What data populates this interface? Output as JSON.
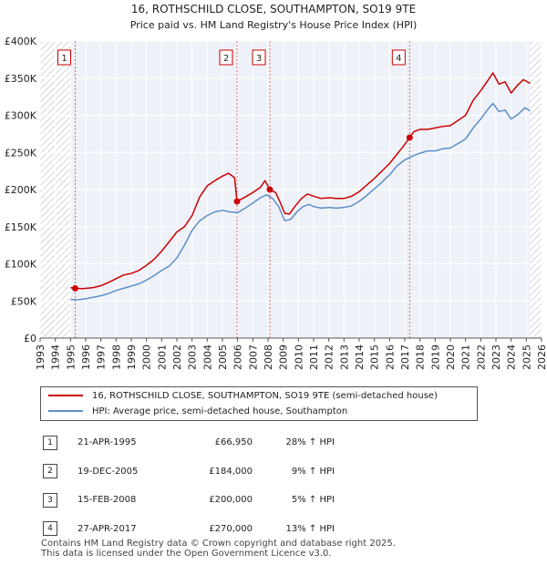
{
  "chart_data": {
    "type": "line",
    "title": "16, ROTHSCHILD CLOSE, SOUTHAMPTON, SO19 9TE",
    "subtitle": "Price paid vs. HM Land Registry's House Price Index (HPI)",
    "xlim": [
      1993,
      2026
    ],
    "ylim": [
      0,
      400000
    ],
    "x_ticks": [
      1993,
      1994,
      1995,
      1996,
      1997,
      1998,
      1999,
      2000,
      2001,
      2002,
      2003,
      2004,
      2005,
      2006,
      2007,
      2008,
      2009,
      2010,
      2011,
      2012,
      2013,
      2014,
      2015,
      2016,
      2017,
      2018,
      2019,
      2020,
      2021,
      2022,
      2023,
      2024,
      2025,
      2026
    ],
    "y_ticks": [
      {
        "value": 0,
        "label": "£0"
      },
      {
        "value": 50000,
        "label": "£50K"
      },
      {
        "value": 100000,
        "label": "£100K"
      },
      {
        "value": 150000,
        "label": "£150K"
      },
      {
        "value": 200000,
        "label": "£200K"
      },
      {
        "value": 250000,
        "label": "£250K"
      },
      {
        "value": 300000,
        "label": "£300K"
      },
      {
        "value": 350000,
        "label": "£350K"
      },
      {
        "value": 400000,
        "label": "£400K"
      }
    ],
    "data_start": 1995.0,
    "data_end": 2025.25,
    "series": [
      {
        "name": "16, ROTHSCHILD CLOSE, SOUTHAMPTON, SO19 9TE (semi-detached house)",
        "color": "#cc0000",
        "points": [
          [
            1995.0,
            68000
          ],
          [
            1995.3,
            66950
          ],
          [
            1995.8,
            66500
          ],
          [
            1996.5,
            68000
          ],
          [
            1997.0,
            70500
          ],
          [
            1997.5,
            75000
          ],
          [
            1998.0,
            80000
          ],
          [
            1998.5,
            85000
          ],
          [
            1999.0,
            87000
          ],
          [
            1999.5,
            91000
          ],
          [
            2000.0,
            98000
          ],
          [
            2000.5,
            106000
          ],
          [
            2001.0,
            117000
          ],
          [
            2001.5,
            130000
          ],
          [
            2002.0,
            143000
          ],
          [
            2002.5,
            150000
          ],
          [
            2003.0,
            165000
          ],
          [
            2003.5,
            190000
          ],
          [
            2004.0,
            205000
          ],
          [
            2004.5,
            212000
          ],
          [
            2005.0,
            218000
          ],
          [
            2005.4,
            222000
          ],
          [
            2005.8,
            216000
          ],
          [
            2005.96,
            184000
          ],
          [
            2006.5,
            190000
          ],
          [
            2007.0,
            196000
          ],
          [
            2007.5,
            203000
          ],
          [
            2007.8,
            212000
          ],
          [
            2008.12,
            200000
          ],
          [
            2008.5,
            196000
          ],
          [
            2008.8,
            183000
          ],
          [
            2009.1,
            168000
          ],
          [
            2009.4,
            167000
          ],
          [
            2009.8,
            178000
          ],
          [
            2010.2,
            188000
          ],
          [
            2010.6,
            194000
          ],
          [
            2011.0,
            191000
          ],
          [
            2011.5,
            188000
          ],
          [
            2012.0,
            189000
          ],
          [
            2012.5,
            188000
          ],
          [
            2013.0,
            188000
          ],
          [
            2013.5,
            191000
          ],
          [
            2014.0,
            197000
          ],
          [
            2014.5,
            206000
          ],
          [
            2015.0,
            215000
          ],
          [
            2015.5,
            225000
          ],
          [
            2016.0,
            235000
          ],
          [
            2016.5,
            248000
          ],
          [
            2016.9,
            258000
          ],
          [
            2017.32,
            270000
          ],
          [
            2017.6,
            278000
          ],
          [
            2018.0,
            281000
          ],
          [
            2018.5,
            281000
          ],
          [
            2019.0,
            283000
          ],
          [
            2019.5,
            285000
          ],
          [
            2020.0,
            286000
          ],
          [
            2020.5,
            293000
          ],
          [
            2021.0,
            300000
          ],
          [
            2021.5,
            320000
          ],
          [
            2022.0,
            333000
          ],
          [
            2022.5,
            348000
          ],
          [
            2022.8,
            357000
          ],
          [
            2023.2,
            342000
          ],
          [
            2023.6,
            345000
          ],
          [
            2024.0,
            330000
          ],
          [
            2024.4,
            340000
          ],
          [
            2024.8,
            348000
          ],
          [
            2025.25,
            343000
          ]
        ]
      },
      {
        "name": "HPI: Average price, semi-detached house, Southampton",
        "color": "#5b8fc9",
        "points": [
          [
            1995.0,
            52000
          ],
          [
            1995.5,
            51500
          ],
          [
            1996.0,
            53000
          ],
          [
            1996.5,
            55000
          ],
          [
            1997.0,
            57000
          ],
          [
            1997.5,
            60000
          ],
          [
            1998.0,
            64000
          ],
          [
            1998.5,
            67000
          ],
          [
            1999.0,
            70000
          ],
          [
            1999.5,
            73000
          ],
          [
            2000.0,
            78000
          ],
          [
            2000.5,
            84000
          ],
          [
            2001.0,
            91000
          ],
          [
            2001.5,
            97000
          ],
          [
            2002.0,
            108000
          ],
          [
            2002.5,
            125000
          ],
          [
            2003.0,
            145000
          ],
          [
            2003.5,
            158000
          ],
          [
            2004.0,
            165000
          ],
          [
            2004.5,
            170000
          ],
          [
            2005.0,
            172000
          ],
          [
            2005.5,
            170000
          ],
          [
            2006.0,
            169000
          ],
          [
            2006.5,
            175000
          ],
          [
            2007.0,
            182000
          ],
          [
            2007.5,
            189000
          ],
          [
            2007.9,
            193000
          ],
          [
            2008.3,
            188000
          ],
          [
            2008.7,
            177000
          ],
          [
            2009.1,
            158000
          ],
          [
            2009.5,
            160000
          ],
          [
            2009.9,
            170000
          ],
          [
            2010.3,
            177000
          ],
          [
            2010.7,
            180000
          ],
          [
            2011.0,
            177000
          ],
          [
            2011.5,
            175000
          ],
          [
            2012.0,
            176000
          ],
          [
            2012.5,
            175000
          ],
          [
            2013.0,
            176000
          ],
          [
            2013.5,
            178000
          ],
          [
            2014.0,
            184000
          ],
          [
            2014.5,
            192000
          ],
          [
            2015.0,
            201000
          ],
          [
            2015.5,
            210000
          ],
          [
            2016.0,
            220000
          ],
          [
            2016.5,
            232000
          ],
          [
            2017.0,
            240000
          ],
          [
            2017.5,
            245000
          ],
          [
            2018.0,
            249000
          ],
          [
            2018.5,
            252000
          ],
          [
            2019.0,
            252000
          ],
          [
            2019.5,
            255000
          ],
          [
            2020.0,
            256000
          ],
          [
            2020.5,
            262000
          ],
          [
            2021.0,
            268000
          ],
          [
            2021.5,
            283000
          ],
          [
            2022.0,
            295000
          ],
          [
            2022.5,
            309000
          ],
          [
            2022.8,
            316000
          ],
          [
            2023.2,
            305000
          ],
          [
            2023.6,
            307000
          ],
          [
            2024.0,
            295000
          ],
          [
            2024.5,
            302000
          ],
          [
            2024.9,
            310000
          ],
          [
            2025.25,
            306000
          ]
        ]
      }
    ],
    "sales": [
      {
        "n": "1",
        "x": 1995.31,
        "price": 66950
      },
      {
        "n": "2",
        "x": 2005.96,
        "price": 184000
      },
      {
        "n": "3",
        "x": 2008.12,
        "price": 200000
      },
      {
        "n": "4",
        "x": 2017.32,
        "price": 270000
      }
    ]
  },
  "legend": {
    "property_label": "16, ROTHSCHILD CLOSE, SOUTHAMPTON, SO19 9TE (semi-detached house)",
    "hpi_label": "HPI: Average price, semi-detached house, Southampton"
  },
  "transactions": [
    {
      "num": "1",
      "date": "21-APR-1995",
      "price": "£66,950",
      "hpi": "28% ↑ HPI"
    },
    {
      "num": "2",
      "date": "19-DEC-2005",
      "price": "£184,000",
      "hpi": "9% ↑ HPI"
    },
    {
      "num": "3",
      "date": "15-FEB-2008",
      "price": "£200,000",
      "hpi": "5% ↑ HPI"
    },
    {
      "num": "4",
      "date": "27-APR-2017",
      "price": "£270,000",
      "hpi": "13% ↑ HPI"
    }
  ],
  "footer": {
    "line1": "Contains HM Land Registry data © Crown copyright and database right 2025.",
    "line2": "This data is licensed under the Open Government Licence v3.0."
  }
}
